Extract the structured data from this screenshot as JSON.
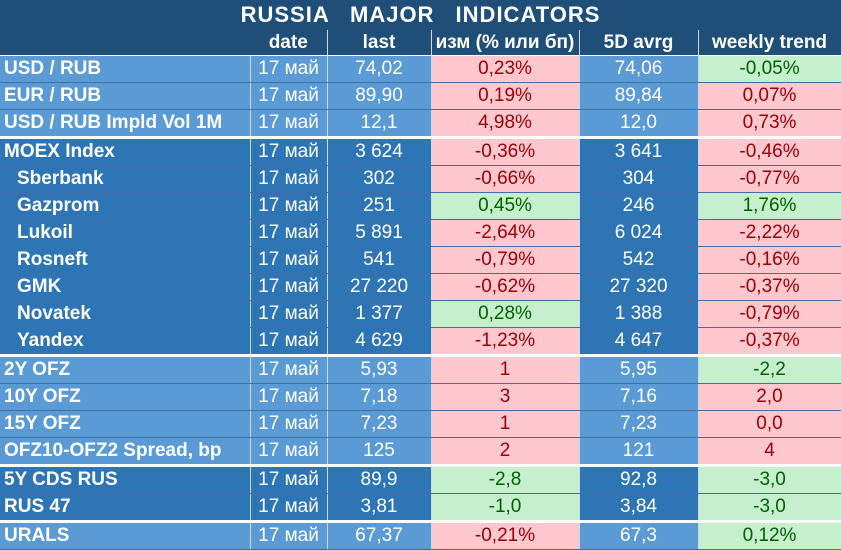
{
  "title": "RUSSIA   MAJOR   INDICATORS",
  "columns": [
    "",
    "date",
    "last",
    "изм (% или бп)",
    "5D avrg",
    "weekly trend"
  ],
  "rows": [
    {
      "name": "USD / RUB",
      "date": "17 май",
      "last": "74,02",
      "change": "0,23%",
      "avg": "74,06",
      "trend": "-0,05%",
      "shade": "light",
      "sub": false,
      "sep": false,
      "changeTone": "neg",
      "trendTone": "pos"
    },
    {
      "name": "EUR / RUB",
      "date": "17 май",
      "last": "89,90",
      "change": "0,19%",
      "avg": "89,84",
      "trend": "0,07%",
      "shade": "light",
      "sub": false,
      "sep": false,
      "changeTone": "neg",
      "trendTone": "neg"
    },
    {
      "name": "USD / RUB Impld Vol 1M",
      "date": "17 май",
      "last": "12,1",
      "change": "4,98%",
      "avg": "12,0",
      "trend": "0,73%",
      "shade": "light",
      "sub": false,
      "sep": false,
      "changeTone": "neg",
      "trendTone": "neg"
    },
    {
      "name": "MOEX Index",
      "date": "17 май",
      "last": "3 624",
      "change": "-0,36%",
      "avg": "3 641",
      "trend": "-0,46%",
      "shade": "dark",
      "sub": false,
      "sep": true,
      "changeTone": "neg",
      "trendTone": "neg"
    },
    {
      "name": "Sberbank",
      "date": "17 май",
      "last": "302",
      "change": "-0,66%",
      "avg": "304",
      "trend": "-0,77%",
      "shade": "dark",
      "sub": true,
      "sep": false,
      "changeTone": "neg",
      "trendTone": "neg"
    },
    {
      "name": "Gazprom",
      "date": "17 май",
      "last": "251",
      "change": "0,45%",
      "avg": "246",
      "trend": "1,76%",
      "shade": "dark",
      "sub": true,
      "sep": false,
      "changeTone": "pos",
      "trendTone": "pos"
    },
    {
      "name": "Lukoil",
      "date": "17 май",
      "last": "5 891",
      "change": "-2,64%",
      "avg": "6 024",
      "trend": "-2,22%",
      "shade": "dark",
      "sub": true,
      "sep": false,
      "changeTone": "neg",
      "trendTone": "neg"
    },
    {
      "name": "Rosneft",
      "date": "17 май",
      "last": "541",
      "change": "-0,79%",
      "avg": "542",
      "trend": "-0,16%",
      "shade": "dark",
      "sub": true,
      "sep": false,
      "changeTone": "neg",
      "trendTone": "neg"
    },
    {
      "name": "GMK",
      "date": "17 май",
      "last": "27 220",
      "change": "-0,62%",
      "avg": "27 320",
      "trend": "-0,37%",
      "shade": "dark",
      "sub": true,
      "sep": false,
      "changeTone": "neg",
      "trendTone": "neg"
    },
    {
      "name": "Novatek",
      "date": "17 май",
      "last": "1 377",
      "change": "0,28%",
      "avg": "1 388",
      "trend": "-0,79%",
      "shade": "dark",
      "sub": true,
      "sep": false,
      "changeTone": "pos",
      "trendTone": "neg"
    },
    {
      "name": "Yandex",
      "date": "17 май",
      "last": "4 629",
      "change": "-1,23%",
      "avg": "4 647",
      "trend": "-0,37%",
      "shade": "dark",
      "sub": true,
      "sep": false,
      "changeTone": "neg",
      "trendTone": "neg"
    },
    {
      "name": "2Y OFZ",
      "date": "17 май",
      "last": "5,93",
      "change": "1",
      "avg": "5,95",
      "trend": "-2,2",
      "shade": "light",
      "sub": false,
      "sep": true,
      "changeTone": "neg",
      "trendTone": "pos"
    },
    {
      "name": "10Y OFZ",
      "date": "17 май",
      "last": "7,18",
      "change": "3",
      "avg": "7,16",
      "trend": "2,0",
      "shade": "light",
      "sub": false,
      "sep": false,
      "changeTone": "neg",
      "trendTone": "neg"
    },
    {
      "name": "15Y OFZ",
      "date": "17 май",
      "last": "7,23",
      "change": "1",
      "avg": "7,23",
      "trend": "0,0",
      "shade": "light",
      "sub": false,
      "sep": false,
      "changeTone": "neg",
      "trendTone": "neg"
    },
    {
      "name": "OFZ10-OFZ2 Spread, bp",
      "date": "17 май",
      "last": "125",
      "change": "2",
      "avg": "121",
      "trend": "4",
      "shade": "light",
      "sub": false,
      "sep": false,
      "changeTone": "neg",
      "trendTone": "neg"
    },
    {
      "name": "5Y CDS RUS",
      "date": "17 май",
      "last": "89,9",
      "change": "-2,8",
      "avg": "92,8",
      "trend": "-3,0",
      "shade": "dark",
      "sub": false,
      "sep": true,
      "changeTone": "pos",
      "trendTone": "pos"
    },
    {
      "name": "RUS 47",
      "date": "17 май",
      "last": "3,81",
      "change": "-1,0",
      "avg": "3,84",
      "trend": "-3,0",
      "shade": "dark",
      "sub": false,
      "sep": false,
      "changeTone": "pos",
      "trendTone": "pos"
    },
    {
      "name": "URALS",
      "date": "17 май",
      "last": "67,37",
      "change": "-0,21%",
      "avg": "67,3",
      "trend": "0,12%",
      "shade": "light",
      "sub": false,
      "sep": true,
      "changeTone": "neg",
      "trendTone": "pos"
    }
  ],
  "colors": {
    "header_bg": "#1f4e79",
    "row_light": "#5b9bd5",
    "row_dark": "#2e75b6",
    "positive_bg": "#c6efce",
    "positive_text": "#006100",
    "negative_bg": "#ffc7ce",
    "negative_text": "#9c0006"
  }
}
